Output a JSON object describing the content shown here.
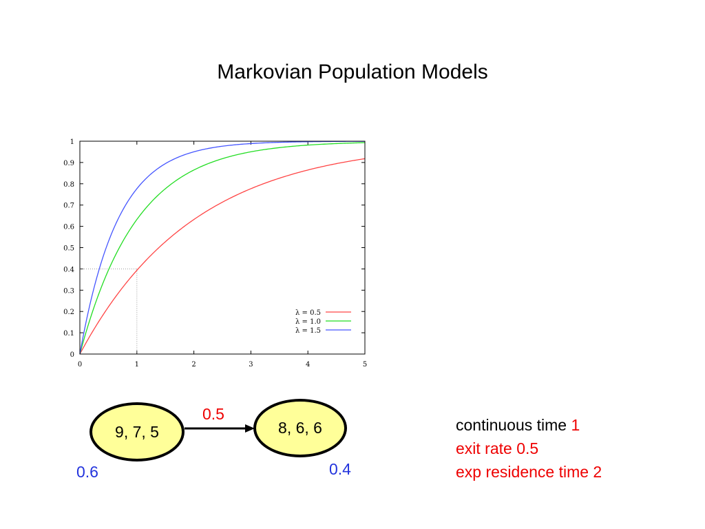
{
  "title": "Markovian Population Models",
  "chart_data": {
    "type": "line",
    "title": "",
    "xlabel": "",
    "ylabel": "",
    "xlim": [
      0,
      5
    ],
    "ylim": [
      0,
      1
    ],
    "xticks": [
      "0",
      "1",
      "2",
      "3",
      "4",
      "5"
    ],
    "yticks": [
      "0",
      "0.1",
      "0.2",
      "0.3",
      "0.4",
      "0.5",
      "0.6",
      "0.7",
      "0.8",
      "0.9",
      "1"
    ],
    "function": "1 - exp(-lambda * t)",
    "series": [
      {
        "name": "λ = 0.5",
        "lambda": 0.5,
        "color": "#ff4444"
      },
      {
        "name": "λ = 1.0",
        "lambda": 1.0,
        "color": "#22dd22"
      },
      {
        "name": "λ = 1.5",
        "lambda": 1.5,
        "color": "#4455ff"
      }
    ],
    "annotation": {
      "x": 1,
      "y": 0.4
    },
    "legend_position": "bottom-right",
    "grid": false
  },
  "diagram": {
    "state_a": "9, 7, 5",
    "state_b": "8, 6, 6",
    "transition_rate": "0.5",
    "prob_a": "0.6",
    "prob_b": "0.4"
  },
  "notes": {
    "line1_prefix": "continuous time",
    "line1_value": "1",
    "line2": "exit rate 0.5",
    "line3": "exp residence time 2"
  },
  "colors": {
    "node_fill": "#ffff99",
    "accent_red": "#ee0000",
    "accent_blue": "#2233dd"
  }
}
